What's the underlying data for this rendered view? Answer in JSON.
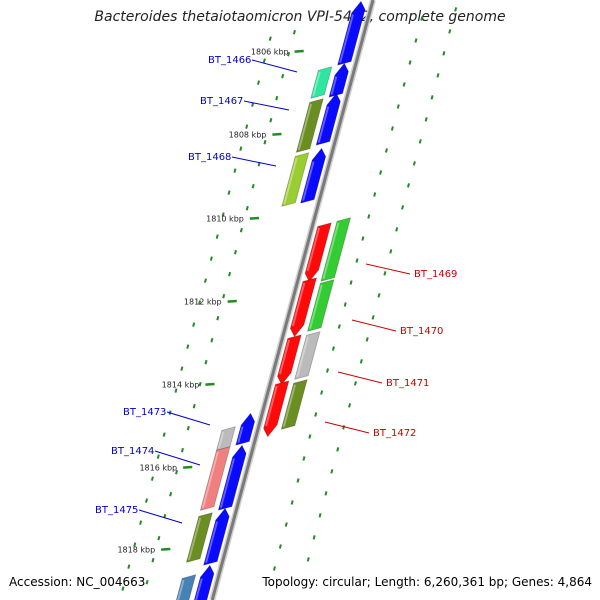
{
  "title": "Bacteroides thetaiotaomicron VPI-5482, complete genome",
  "footer": {
    "accession": "Accession: NC_004663",
    "summary": "Topology: circular; Length: 6,260,361 bp; Genes: 4,864"
  },
  "ruler_labels": [
    "1806 kbp",
    "1808 kbp",
    "1810 kbp",
    "1812 kbp",
    "1814 kbp",
    "1816 kbp",
    "1818 kbp"
  ],
  "genes": [
    {
      "name": "BT_1466",
      "strand": "forward",
      "color": "#2ee6a0"
    },
    {
      "name": "BT_1467",
      "strand": "forward",
      "color": "#6b8e23"
    },
    {
      "name": "BT_1468",
      "strand": "forward",
      "color": "#9acd32"
    },
    {
      "name": "BT_1469",
      "strand": "reverse",
      "color": "#33cc33"
    },
    {
      "name": "BT_1470",
      "strand": "reverse",
      "color": "#33cc33"
    },
    {
      "name": "BT_1471",
      "strand": "reverse",
      "color": "#bbbbbb"
    },
    {
      "name": "BT_1472",
      "strand": "reverse",
      "color": "#6b8e23"
    },
    {
      "name": "BT_1473",
      "strand": "forward",
      "color": "#bbbbbb"
    },
    {
      "name": "BT_1474",
      "strand": "forward",
      "color": "#f08080"
    },
    {
      "name": "BT_1475",
      "strand": "forward",
      "color": "#6b8e23"
    }
  ],
  "colors": {
    "backbone": "#888888",
    "cds_blue": "#0a0aff",
    "cds_red": "#ff0a0a",
    "tick_green": "#228b22",
    "forward_label": "#0000cc",
    "reverse_label": "#cc0000"
  }
}
